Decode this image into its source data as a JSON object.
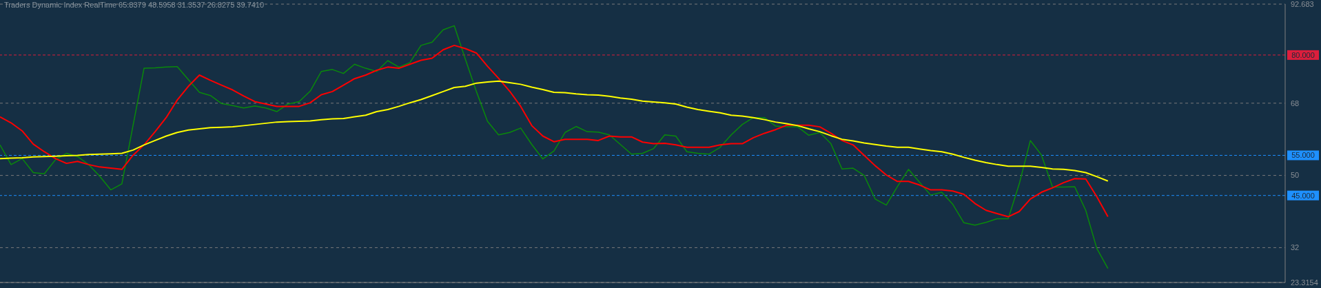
{
  "chart_data": {
    "type": "line",
    "title": "Traders Dynamic Index RealTime 65.8379 48.5958 31.3537 26.8275 39.7410",
    "categories": [
      null,
      null,
      null,
      null,
      null,
      null,
      null,
      null,
      null,
      null,
      null,
      null,
      null,
      null,
      null,
      null,
      null,
      null,
      null,
      null,
      null,
      null,
      null,
      null,
      null,
      null,
      null,
      null,
      null,
      null,
      null,
      null,
      null,
      null,
      null,
      null,
      null,
      null,
      null,
      null,
      null,
      null,
      null,
      null,
      null,
      null,
      null,
      null,
      null,
      null,
      null,
      null,
      null,
      null,
      null,
      null,
      null,
      null,
      null,
      null,
      null,
      null,
      null,
      null,
      null,
      null,
      null,
      null,
      null,
      null,
      null,
      null,
      null,
      null,
      null,
      null,
      null,
      null,
      null,
      null,
      null,
      null,
      null,
      null,
      null,
      null,
      null,
      null,
      null,
      null,
      null,
      null,
      null,
      null,
      null,
      null,
      null,
      null,
      null,
      null,
      null,
      null,
      null,
      null,
      null,
      null,
      null,
      null,
      null,
      null,
      null,
      null,
      null,
      null,
      null,
      null,
      null
    ],
    "series": [
      {
        "color": "#0a8a0a",
        "values": [
          57.6,
          52.7,
          54.2,
          50.7,
          50.4,
          53.9,
          55.5,
          54.7,
          52.7,
          49.8,
          46.4,
          47.9,
          62.3,
          76.7,
          76.8,
          77.0,
          77.1,
          73.9,
          70.7,
          69.9,
          67.9,
          67.4,
          66.8,
          67.3,
          66.8,
          65.9,
          67.8,
          68.4,
          71.0,
          75.9,
          76.4,
          75.4,
          77.7,
          76.7,
          75.9,
          78.6,
          77.0,
          78.1,
          82.4,
          83.2,
          86.3,
          87.3,
          79.0,
          70.9,
          63.5,
          60.1,
          60.7,
          61.8,
          57.7,
          54.1,
          56.1,
          60.7,
          62.2,
          60.9,
          60.8,
          60.1,
          57.7,
          55.3,
          55.5,
          56.7,
          60.1,
          59.8,
          55.9,
          55.5,
          55.3,
          57.0,
          60.1,
          62.7,
          64.4,
          64.4,
          62.3,
          62.1,
          62.1,
          60.0,
          60.7,
          57.9,
          51.6,
          51.8,
          50.0,
          44.1,
          42.6,
          47.2,
          51.5,
          48.3,
          45.1,
          45.8,
          42.8,
          38.2,
          37.6,
          38.3,
          39.2,
          39.2,
          47.9,
          58.7,
          55.1,
          47.1,
          47.1,
          47.2,
          41.3,
          31.8,
          26.8,
          null,
          null,
          null,
          null,
          null,
          null,
          null,
          null,
          null,
          null,
          null,
          null,
          null,
          null,
          null,
          null
        ]
      },
      {
        "color": "#ff0000",
        "values": [
          64.6,
          63.1,
          61.1,
          57.8,
          55.9,
          54.2,
          53.0,
          53.5,
          52.7,
          52.1,
          51.8,
          51.5,
          55.0,
          57.6,
          60.9,
          64.4,
          68.8,
          72.2,
          75.0,
          73.7,
          72.5,
          71.3,
          69.8,
          68.4,
          67.8,
          67.2,
          67.2,
          67.2,
          68.1,
          70.1,
          70.9,
          72.5,
          74.1,
          75.0,
          76.2,
          77.0,
          76.7,
          77.7,
          78.7,
          79.2,
          81.3,
          82.4,
          81.6,
          80.5,
          77.2,
          74.2,
          71.0,
          67.2,
          62.4,
          59.8,
          58.4,
          59.0,
          59.0,
          59.0,
          58.7,
          59.8,
          59.6,
          59.6,
          58.3,
          57.9,
          58.0,
          57.6,
          57.0,
          57.0,
          57.0,
          57.6,
          57.9,
          57.9,
          59.4,
          60.5,
          61.4,
          62.5,
          62.5,
          62.5,
          62.1,
          60.5,
          58.7,
          57.6,
          55.0,
          52.4,
          50.1,
          48.5,
          48.5,
          47.6,
          46.4,
          46.4,
          46.1,
          45.3,
          43.0,
          41.3,
          40.5,
          39.7,
          41.0,
          44.1,
          45.8,
          46.9,
          48.2,
          49.2,
          49.1,
          44.7,
          39.7,
          null,
          null,
          null,
          null,
          null,
          null,
          null,
          null,
          null,
          null,
          null,
          null,
          null,
          null,
          null,
          null
        ]
      },
      {
        "color": "#ffff00",
        "values": [
          54.2,
          54.3,
          54.4,
          54.6,
          54.7,
          54.8,
          54.9,
          55.0,
          55.2,
          55.3,
          55.4,
          55.5,
          56.3,
          57.6,
          58.7,
          59.8,
          60.7,
          61.3,
          61.6,
          61.9,
          62.0,
          62.1,
          62.4,
          62.7,
          63.0,
          63.3,
          63.4,
          63.5,
          63.6,
          63.9,
          64.1,
          64.2,
          64.6,
          65.0,
          65.9,
          66.4,
          67.2,
          68.1,
          68.9,
          69.9,
          70.9,
          71.9,
          72.2,
          73.0,
          73.3,
          73.5,
          73.1,
          72.7,
          72.0,
          71.4,
          70.7,
          70.6,
          70.3,
          70.1,
          70.0,
          69.7,
          69.3,
          69.0,
          68.5,
          68.3,
          68.1,
          67.8,
          67.0,
          66.4,
          66.0,
          65.6,
          65.0,
          64.8,
          64.4,
          63.9,
          63.3,
          62.9,
          62.4,
          61.6,
          60.9,
          59.9,
          59.0,
          58.6,
          58.1,
          57.7,
          57.3,
          57.0,
          57.0,
          56.6,
          56.2,
          55.9,
          55.3,
          54.5,
          53.8,
          53.2,
          52.7,
          52.3,
          52.3,
          52.3,
          52.0,
          51.6,
          51.5,
          51.2,
          50.7,
          49.7,
          48.6,
          null,
          null,
          null,
          null,
          null,
          null,
          null,
          null,
          null,
          null,
          null,
          null,
          null,
          null,
          null,
          null
        ]
      }
    ],
    "ylim": [
      23.3154,
      92.683
    ],
    "yticks": [
      23.3154,
      32,
      50,
      68,
      92.683
    ],
    "ref_lines": [
      {
        "axis": "y",
        "value": 80,
        "label": "80.000",
        "color": "#dc1e3c",
        "line_style": "dashed"
      },
      {
        "axis": "y",
        "value": 55,
        "label": "55.000",
        "color": "#1e90ff",
        "line_style": "dashed"
      },
      {
        "axis": "y",
        "value": 45,
        "label": "45.000",
        "color": "#1e90ff",
        "line_style": "dashed"
      }
    ],
    "grid": "y",
    "marker": "none",
    "line_style": "solid",
    "tick_labels": "y"
  }
}
